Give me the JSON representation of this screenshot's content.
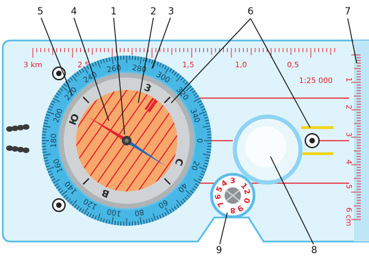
{
  "callouts": [
    "1",
    "2",
    "3",
    "4",
    "5",
    "6",
    "7",
    "8",
    "9"
  ],
  "top_ruler": {
    "labels": [
      "3 km",
      "2,5",
      "2",
      "1,5",
      "1,0",
      "0,5"
    ],
    "scale": "1:25 000"
  },
  "side_ruler": {
    "labels": [
      "1",
      "2",
      "3",
      "4",
      "5",
      "6 cm"
    ]
  },
  "bezel": {
    "degrees": [
      "0",
      "20",
      "40",
      "60",
      "80",
      "100",
      "120",
      "140",
      "160",
      "180",
      "200",
      "220",
      "240",
      "260",
      "280",
      "300",
      "320",
      "340"
    ]
  },
  "cardinals": [
    "C",
    "3",
    "Ю",
    "В"
  ],
  "dial": {
    "digits": [
      "1",
      "2",
      "3",
      "4",
      "5",
      "6",
      "7",
      "8",
      "9",
      "0"
    ]
  },
  "colors": {
    "baseplate": "#dff3fc",
    "baseplate_edge": "#58bde8",
    "bezel": "#47b8e6",
    "face": "#f7a86b",
    "ring": "#aeb3b6",
    "needle_north": "#e5202c",
    "needle_south": "#1f66c4",
    "orienting_lines": "#e5202c",
    "accent": "#f1d41c"
  }
}
